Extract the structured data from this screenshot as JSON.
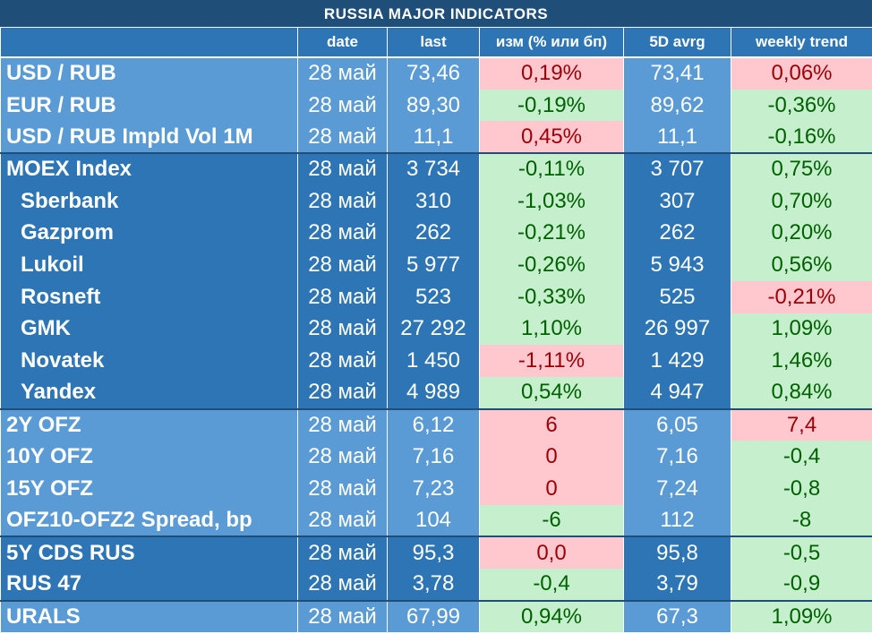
{
  "title": "RUSSIA   MAJOR   INDICATORS",
  "headers": {
    "name": "",
    "date": "date",
    "last": "last",
    "change": "изм (% или бп)",
    "avg": "5D avrg",
    "trend": "weekly trend"
  },
  "rows": [
    {
      "name": "USD / RUB",
      "date": "28 май",
      "last": "73,46",
      "change": "0,19%",
      "change_sign": "neg",
      "avg": "73,41",
      "trend": "0,06%",
      "trend_sign": "neg"
    },
    {
      "name": "EUR / RUB",
      "date": "28 май",
      "last": "89,30",
      "change": "-0,19%",
      "change_sign": "pos",
      "avg": "89,62",
      "trend": "-0,36%",
      "trend_sign": "pos"
    },
    {
      "name": "USD / RUB Impld Vol 1M",
      "date": "28 май",
      "last": "11,1",
      "change": "0,45%",
      "change_sign": "neg",
      "avg": "11,1",
      "trend": "-0,16%",
      "trend_sign": "pos"
    },
    {
      "name": "MOEX Index",
      "date": "28 май",
      "last": "3 734",
      "change": "-0,11%",
      "change_sign": "pos",
      "avg": "3 707",
      "trend": "0,75%",
      "trend_sign": "pos"
    },
    {
      "name": "Sberbank",
      "date": "28 май",
      "last": "310",
      "change": "-1,03%",
      "change_sign": "pos",
      "avg": "307",
      "trend": "0,70%",
      "trend_sign": "pos"
    },
    {
      "name": "Gazprom",
      "date": "28 май",
      "last": "262",
      "change": "-0,21%",
      "change_sign": "pos",
      "avg": "262",
      "trend": "0,20%",
      "trend_sign": "pos"
    },
    {
      "name": "Lukoil",
      "date": "28 май",
      "last": "5 977",
      "change": "-0,26%",
      "change_sign": "pos",
      "avg": "5 943",
      "trend": "0,56%",
      "trend_sign": "pos"
    },
    {
      "name": "Rosneft",
      "date": "28 май",
      "last": "523",
      "change": "-0,33%",
      "change_sign": "pos",
      "avg": "525",
      "trend": "-0,21%",
      "trend_sign": "neg"
    },
    {
      "name": "GMK",
      "date": "28 май",
      "last": "27 292",
      "change": "1,10%",
      "change_sign": "pos",
      "avg": "26 997",
      "trend": "1,09%",
      "trend_sign": "pos"
    },
    {
      "name": "Novatek",
      "date": "28 май",
      "last": "1 450",
      "change": "-1,11%",
      "change_sign": "neg",
      "avg": "1 429",
      "trend": "1,46%",
      "trend_sign": "pos"
    },
    {
      "name": "Yandex",
      "date": "28 май",
      "last": "4 989",
      "change": "0,54%",
      "change_sign": "pos",
      "avg": "4 947",
      "trend": "0,84%",
      "trend_sign": "pos"
    },
    {
      "name": "2Y OFZ",
      "date": "28 май",
      "last": "6,12",
      "change": "6",
      "change_sign": "neg",
      "avg": "6,05",
      "trend": "7,4",
      "trend_sign": "neg"
    },
    {
      "name": "10Y OFZ",
      "date": "28 май",
      "last": "7,16",
      "change": "0",
      "change_sign": "neg",
      "avg": "7,16",
      "trend": "-0,4",
      "trend_sign": "pos"
    },
    {
      "name": "15Y OFZ",
      "date": "28 май",
      "last": "7,23",
      "change": "0",
      "change_sign": "neg",
      "avg": "7,24",
      "trend": "-0,8",
      "trend_sign": "pos"
    },
    {
      "name": "OFZ10-OFZ2 Spread, bp",
      "date": "28 май",
      "last": "104",
      "change": "-6",
      "change_sign": "pos",
      "avg": "112",
      "trend": "-8",
      "trend_sign": "pos"
    },
    {
      "name": "5Y CDS RUS",
      "date": "28 май",
      "last": "95,3",
      "change": "0,0",
      "change_sign": "neg",
      "avg": "95,8",
      "trend": "-0,5",
      "trend_sign": "pos"
    },
    {
      "name": "RUS 47",
      "date": "28 май",
      "last": "3,78",
      "change": "-0,4",
      "change_sign": "pos",
      "avg": "3,79",
      "trend": "-0,9",
      "trend_sign": "pos"
    },
    {
      "name": "URALS",
      "date": "28 май",
      "last": "67,99",
      "change": "0,94%",
      "change_sign": "pos",
      "avg": "67,3",
      "trend": "1,09%",
      "trend_sign": "pos"
    }
  ],
  "colors": {
    "title_bg": "#1f4e79",
    "header_bg": "#2e75b6",
    "light_blue": "#5b9bd5",
    "dark_blue": "#2e75b6",
    "negative_bg": "#ffc7ce",
    "negative_text": "#9c0006",
    "positive_bg": "#c6efce",
    "positive_text": "#006100"
  }
}
